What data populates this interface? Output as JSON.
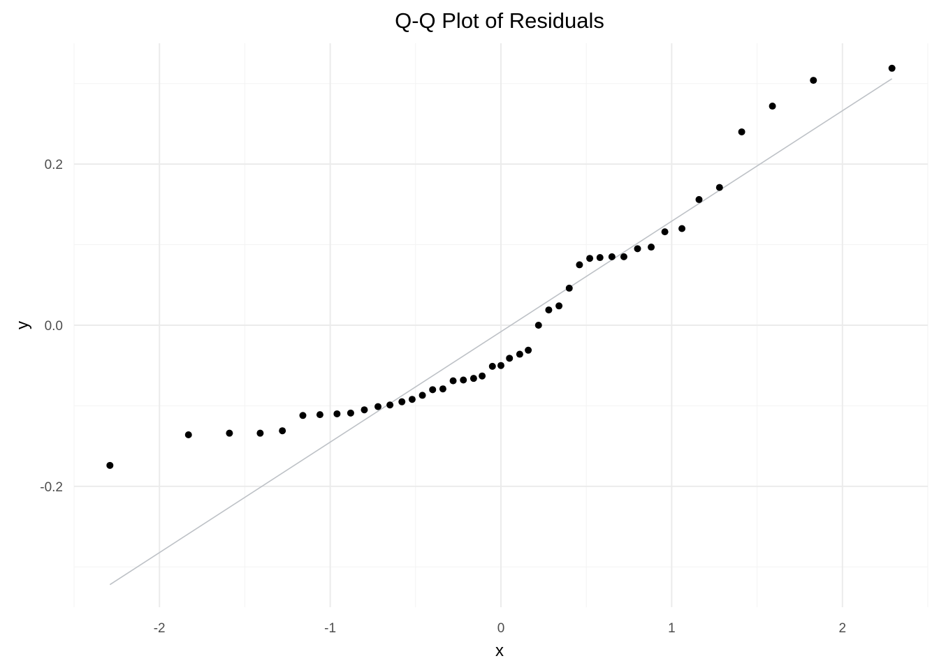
{
  "chart_data": {
    "type": "scatter",
    "title": "Q-Q Plot of Residuals",
    "xlabel": "x",
    "ylabel": "y",
    "xlim": [
      -2.5,
      2.5
    ],
    "ylim": [
      -0.35,
      0.35
    ],
    "x_ticks": [
      -2,
      -1,
      0,
      1,
      2
    ],
    "x_tick_labels": [
      "-2",
      "-1",
      "0",
      "1",
      "2"
    ],
    "y_ticks": [
      -0.2,
      0.0,
      0.2
    ],
    "y_tick_labels": [
      "-0.2",
      "0.0",
      "0.2"
    ],
    "grid": true,
    "points": [
      {
        "x": -2.29,
        "y": -0.174
      },
      {
        "x": -1.83,
        "y": -0.136
      },
      {
        "x": -1.59,
        "y": -0.134
      },
      {
        "x": -1.41,
        "y": -0.134
      },
      {
        "x": -1.28,
        "y": -0.131
      },
      {
        "x": -1.16,
        "y": -0.112
      },
      {
        "x": -1.06,
        "y": -0.111
      },
      {
        "x": -0.96,
        "y": -0.11
      },
      {
        "x": -0.88,
        "y": -0.109
      },
      {
        "x": -0.8,
        "y": -0.105
      },
      {
        "x": -0.72,
        "y": -0.101
      },
      {
        "x": -0.65,
        "y": -0.099
      },
      {
        "x": -0.58,
        "y": -0.095
      },
      {
        "x": -0.52,
        "y": -0.092
      },
      {
        "x": -0.46,
        "y": -0.087
      },
      {
        "x": -0.4,
        "y": -0.08
      },
      {
        "x": -0.34,
        "y": -0.079
      },
      {
        "x": -0.28,
        "y": -0.069
      },
      {
        "x": -0.22,
        "y": -0.068
      },
      {
        "x": -0.16,
        "y": -0.066
      },
      {
        "x": -0.11,
        "y": -0.063
      },
      {
        "x": -0.05,
        "y": -0.051
      },
      {
        "x": 0.0,
        "y": -0.05
      },
      {
        "x": 0.05,
        "y": -0.041
      },
      {
        "x": 0.11,
        "y": -0.036
      },
      {
        "x": 0.16,
        "y": -0.031
      },
      {
        "x": 0.22,
        "y": 0.0
      },
      {
        "x": 0.28,
        "y": 0.019
      },
      {
        "x": 0.34,
        "y": 0.024
      },
      {
        "x": 0.4,
        "y": 0.046
      },
      {
        "x": 0.46,
        "y": 0.075
      },
      {
        "x": 0.52,
        "y": 0.083
      },
      {
        "x": 0.58,
        "y": 0.084
      },
      {
        "x": 0.65,
        "y": 0.085
      },
      {
        "x": 0.72,
        "y": 0.085
      },
      {
        "x": 0.8,
        "y": 0.095
      },
      {
        "x": 0.88,
        "y": 0.097
      },
      {
        "x": 0.96,
        "y": 0.116
      },
      {
        "x": 1.06,
        "y": 0.12
      },
      {
        "x": 1.16,
        "y": 0.156
      },
      {
        "x": 1.28,
        "y": 0.171
      },
      {
        "x": 1.41,
        "y": 0.24
      },
      {
        "x": 1.59,
        "y": 0.272
      },
      {
        "x": 1.83,
        "y": 0.304
      },
      {
        "x": 2.29,
        "y": 0.319
      }
    ],
    "reference_line": {
      "x": [
        -2.29,
        2.29
      ],
      "y": [
        -0.322,
        0.306
      ]
    },
    "colors": {
      "points": "#000000",
      "reference_line": "#bdc1c6",
      "grid_major": "#ebebeb",
      "grid_minor": "#f4f4f4"
    }
  }
}
